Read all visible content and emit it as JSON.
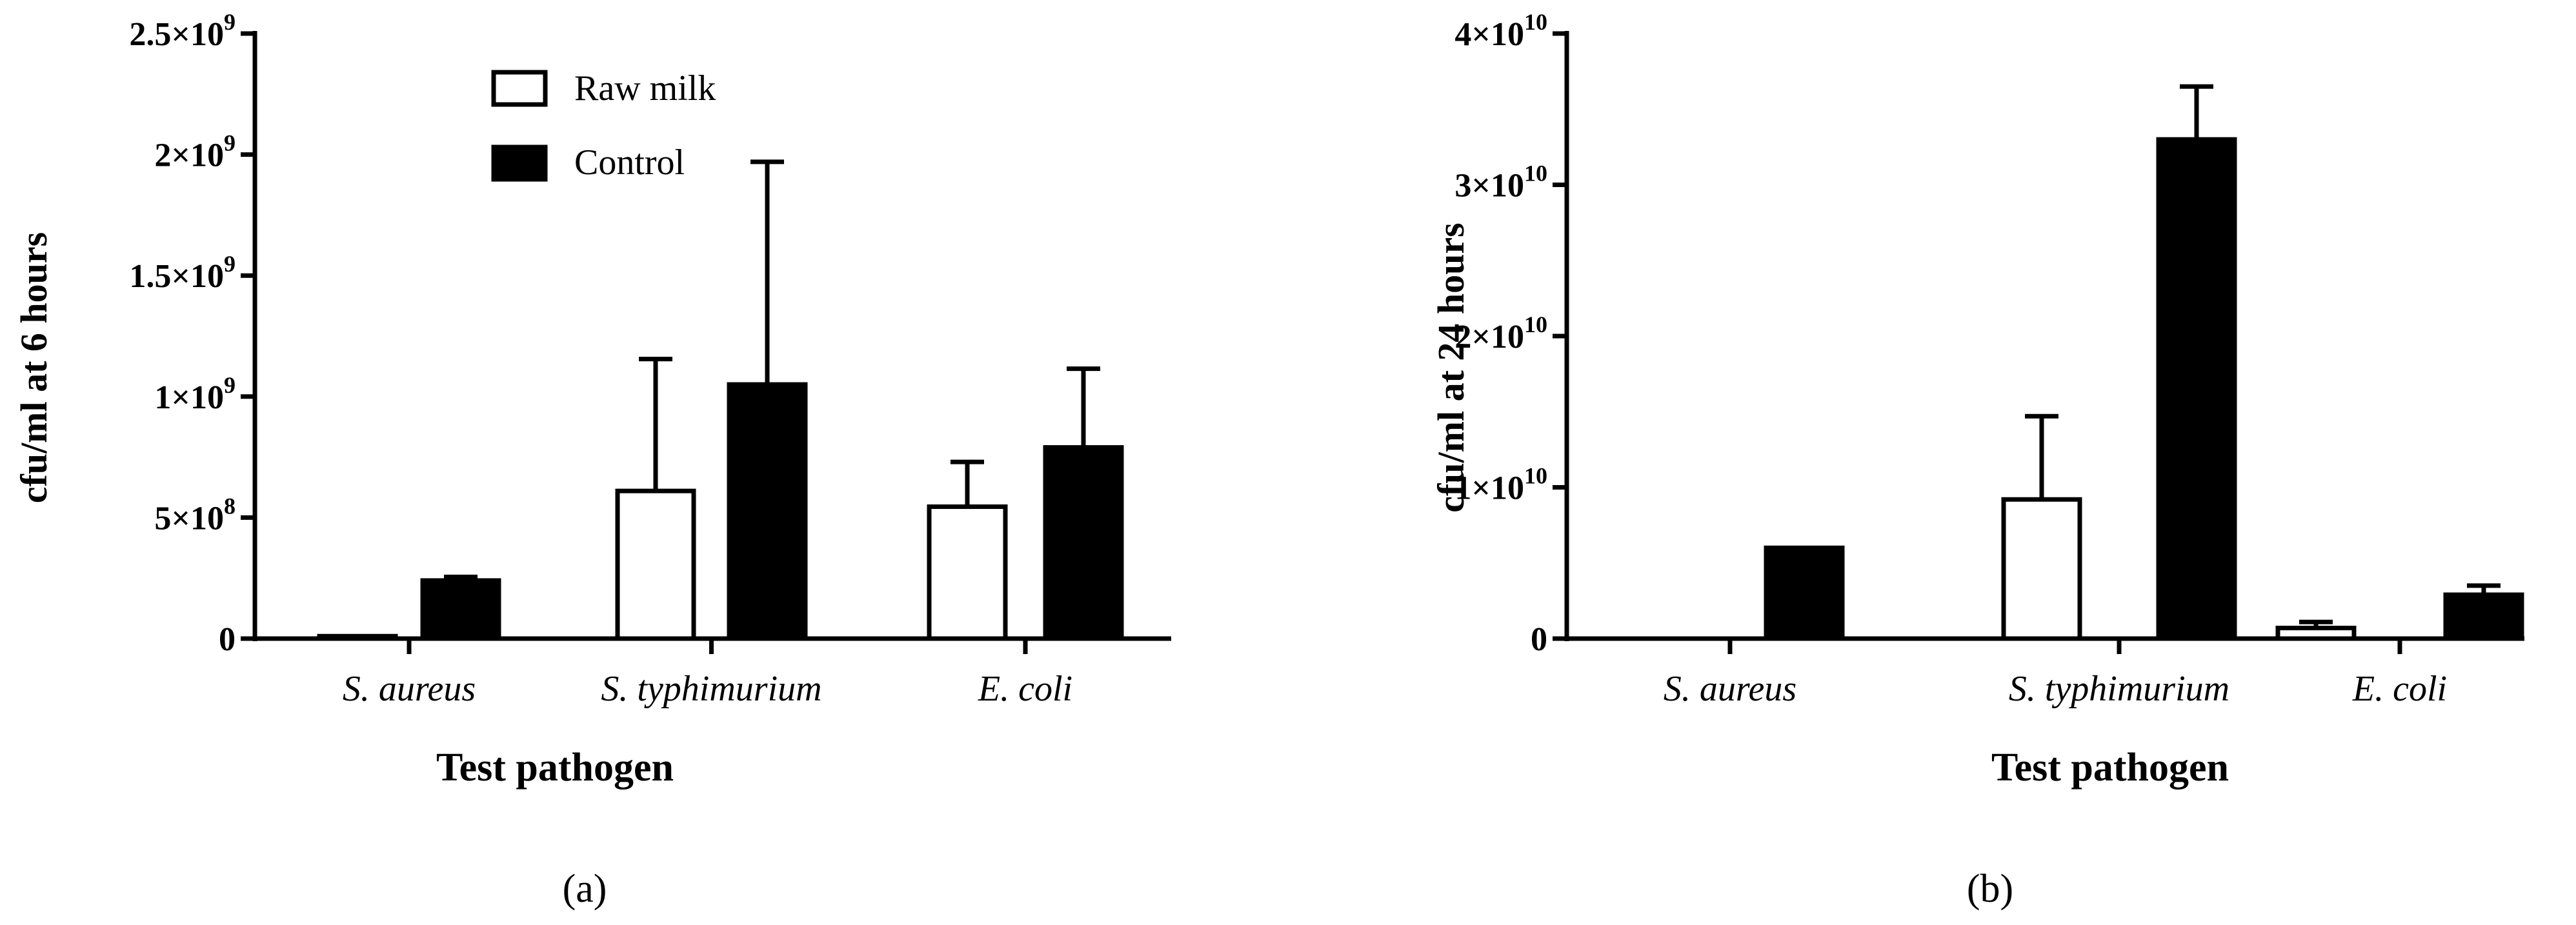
{
  "figure": {
    "panels": [
      "(a)",
      "(b)"
    ]
  },
  "legend": {
    "items": [
      {
        "label": "Raw milk",
        "color": "#ffffff"
      },
      {
        "label": "Control",
        "color": "#000000"
      }
    ]
  },
  "colors": {
    "raw": "#ffffff",
    "control": "#000000",
    "axis": "#000000"
  },
  "chart_data": [
    {
      "type": "bar",
      "panel": "(a)",
      "xlabel": "Test pathogen",
      "ylabel": "cfu/ml at 6 hours",
      "categories": [
        "S. aureus",
        "S. typhimurium",
        "E. coli"
      ],
      "ylim": [
        0,
        2500000000
      ],
      "yticks": [
        {
          "value": 0,
          "base": "0",
          "exp": ""
        },
        {
          "value": 500000000,
          "base": "5×10",
          "exp": "8"
        },
        {
          "value": 1000000000,
          "base": "1×10",
          "exp": "9"
        },
        {
          "value": 1500000000,
          "base": "1.5×10",
          "exp": "9"
        },
        {
          "value": 2000000000,
          "base": "2×10",
          "exp": "9"
        },
        {
          "value": 2500000000,
          "base": "2.5×10",
          "exp": "9"
        }
      ],
      "series": [
        {
          "name": "Raw milk",
          "values": [
            10000000,
            610000000,
            545000000
          ],
          "errors": [
            0,
            545000000,
            185000000
          ]
        },
        {
          "name": "Control",
          "values": [
            240000000,
            1050000000,
            790000000
          ],
          "errors": [
            15000000,
            920000000,
            325000000
          ]
        }
      ],
      "legend": "top-center"
    },
    {
      "type": "bar",
      "panel": "(b)",
      "xlabel": "Test pathogen",
      "ylabel": "cfu/ml at 24 hours",
      "categories": [
        "S. aureus",
        "S. typhimurium",
        "E. coli"
      ],
      "ylim": [
        0,
        40000000000
      ],
      "yticks": [
        {
          "value": 0,
          "base": "0",
          "exp": ""
        },
        {
          "value": 10000000000,
          "base": "1×10",
          "exp": "10"
        },
        {
          "value": 20000000000,
          "base": "2×10",
          "exp": "10"
        },
        {
          "value": 30000000000,
          "base": "3×10",
          "exp": "10"
        },
        {
          "value": 40000000000,
          "base": "4×10",
          "exp": "10"
        }
      ],
      "series": [
        {
          "name": "Raw milk",
          "values": [
            0,
            9200000000,
            700000000
          ],
          "errors": [
            0,
            5500000000,
            400000000
          ]
        },
        {
          "name": "Control",
          "values": [
            6000000000,
            33000000000,
            2900000000
          ],
          "errors": [
            0,
            3500000000,
            600000000
          ]
        }
      ]
    }
  ]
}
